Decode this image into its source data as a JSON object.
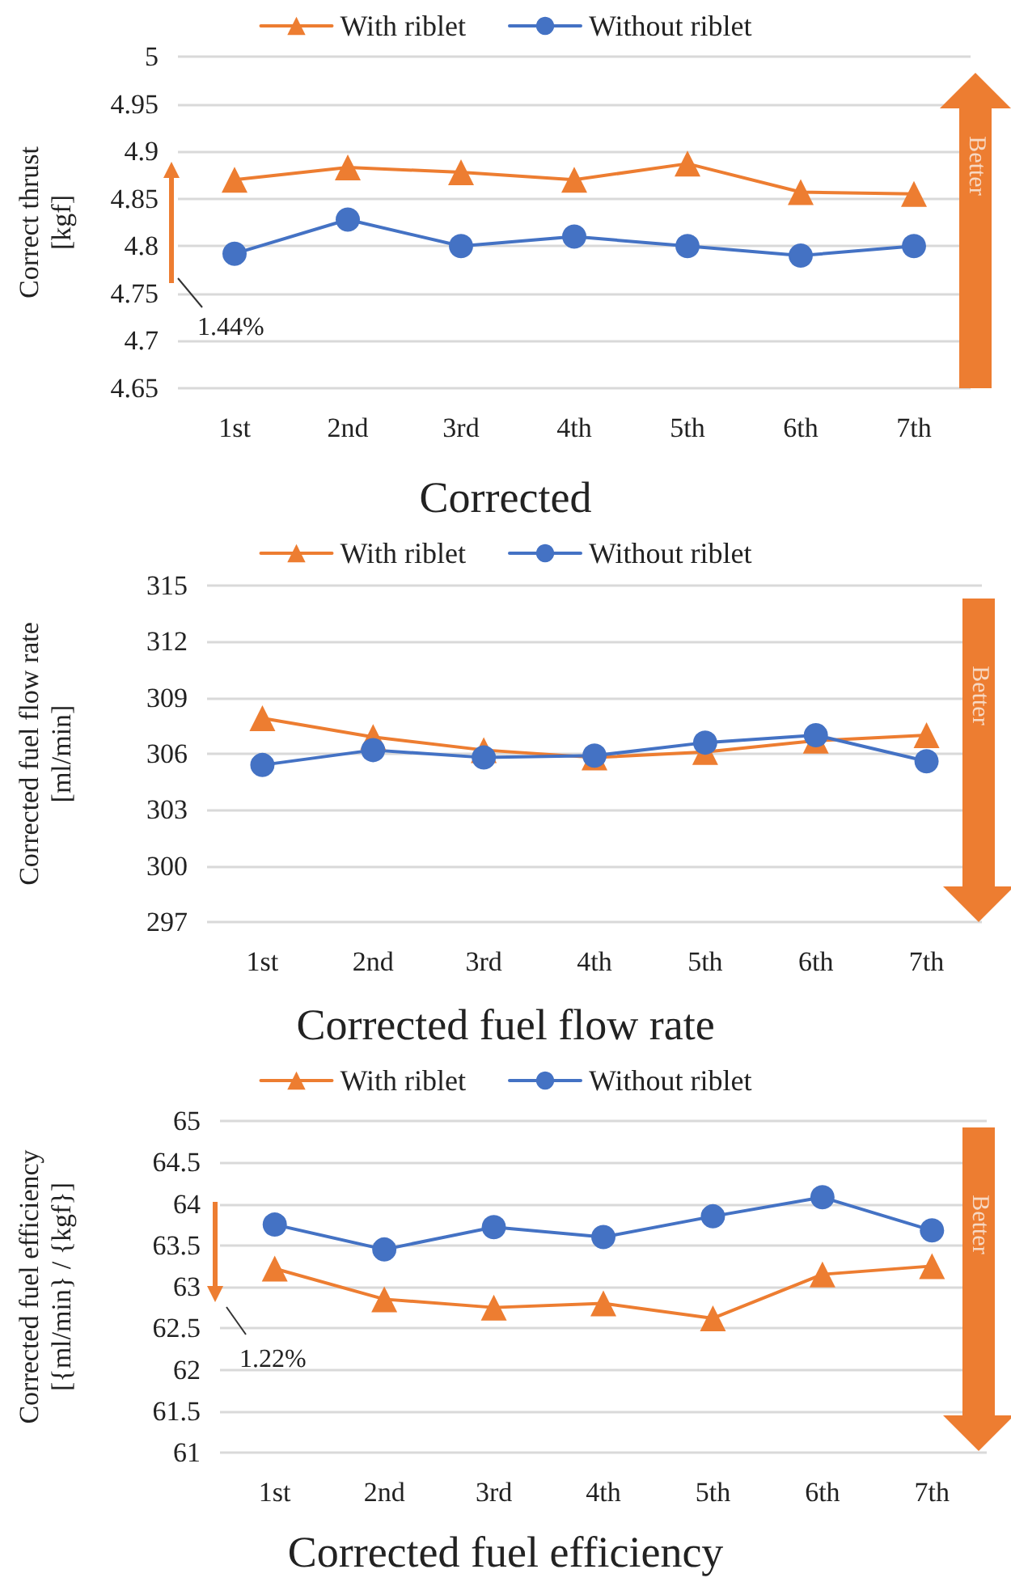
{
  "chart_data": [
    {
      "type": "line",
      "title": "Corrected",
      "ylabel": "Correct thrust [kgf]",
      "categories": [
        "1st",
        "2nd",
        "3rd",
        "4th",
        "5th",
        "6th",
        "7th"
      ],
      "series": [
        {
          "name": "With riblet",
          "color": "#ed7d31",
          "marker": "triangle",
          "values": [
            4.87,
            4.883,
            4.878,
            4.87,
            4.887,
            4.857,
            4.855
          ]
        },
        {
          "name": "Without riblet",
          "color": "#4472c4",
          "marker": "circle",
          "values": [
            4.792,
            4.828,
            4.8,
            4.81,
            4.8,
            4.79,
            4.8
          ]
        }
      ],
      "ylim": [
        4.65,
        5
      ],
      "yticks": [
        4.65,
        4.7,
        4.75,
        4.8,
        4.85,
        4.9,
        4.95,
        5
      ],
      "grid": "y",
      "legend": "top",
      "annotations": [
        "1.44%",
        "Better"
      ]
    },
    {
      "type": "line",
      "title": "Corrected fuel flow rate",
      "ylabel": "Corrected fuel flow rate [ml/min]",
      "categories": [
        "1st",
        "2nd",
        "3rd",
        "4th",
        "5th",
        "6th",
        "7th"
      ],
      "series": [
        {
          "name": "With riblet",
          "color": "#ed7d31",
          "marker": "triangle",
          "values": [
            307.9,
            306.9,
            306.2,
            305.8,
            306.1,
            306.7,
            307.0
          ]
        },
        {
          "name": "Without riblet",
          "color": "#4472c4",
          "marker": "circle",
          "values": [
            305.4,
            306.2,
            305.8,
            305.9,
            306.6,
            307.0,
            305.6
          ]
        }
      ],
      "ylim": [
        297,
        315
      ],
      "yticks": [
        297,
        300,
        303,
        306,
        309,
        312,
        315
      ],
      "grid": "y",
      "legend": "top",
      "annotations": [
        "Better"
      ]
    },
    {
      "type": "line",
      "title": "Corrected fuel efficiency",
      "ylabel": "Corrected fuel efficiency [{ml/min} / {kgf}]",
      "categories": [
        "1st",
        "2nd",
        "3rd",
        "4th",
        "5th",
        "6th",
        "7th"
      ],
      "series": [
        {
          "name": "With riblet",
          "color": "#ed7d31",
          "marker": "triangle",
          "values": [
            63.22,
            62.85,
            62.75,
            62.8,
            62.62,
            63.15,
            63.25
          ]
        },
        {
          "name": "Without riblet",
          "color": "#4472c4",
          "marker": "circle",
          "values": [
            63.75,
            63.45,
            63.72,
            63.6,
            63.85,
            64.08,
            63.68
          ]
        }
      ],
      "ylim": [
        61,
        65
      ],
      "yticks": [
        61,
        61.5,
        62,
        62.5,
        63,
        63.5,
        64,
        64.5,
        65
      ],
      "grid": "y",
      "legend": "top",
      "annotations": [
        "1.22%",
        "Better"
      ]
    }
  ]
}
